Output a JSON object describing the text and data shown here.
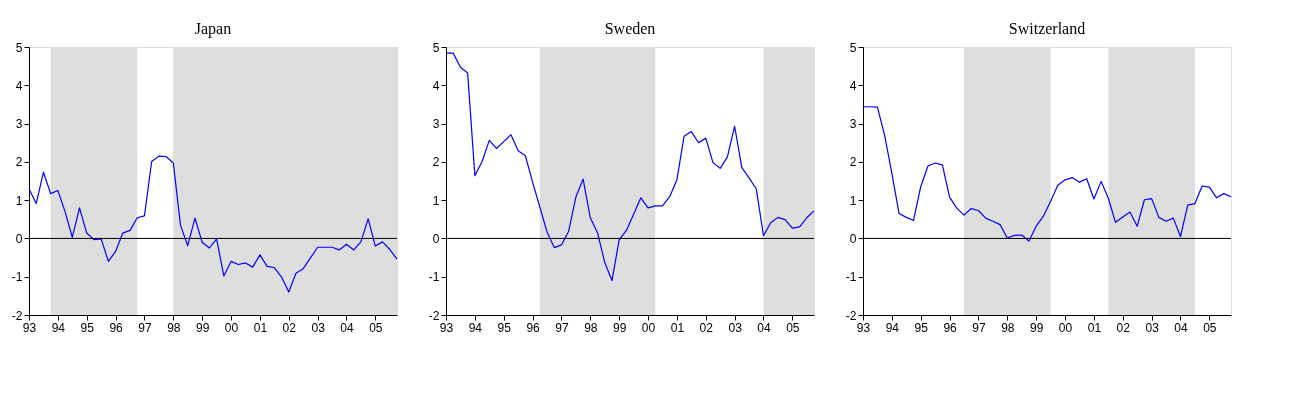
{
  "chart_data": [
    {
      "type": "line",
      "title": "Japan",
      "x": [
        1993,
        1993.25,
        1993.5,
        1993.75,
        1994,
        1994.25,
        1994.5,
        1994.75,
        1995,
        1995.25,
        1995.5,
        1995.75,
        1996,
        1996.25,
        1996.5,
        1996.75,
        1997,
        1997.25,
        1997.5,
        1997.75,
        1998,
        1998.25,
        1998.5,
        1998.75,
        1999,
        1999.25,
        1999.5,
        1999.75,
        2000,
        2000.25,
        2000.5,
        2000.75,
        2001,
        2001.25,
        2001.5,
        2001.75,
        2002,
        2002.25,
        2002.5,
        2002.75,
        2003,
        2003.25,
        2003.5,
        2003.75,
        2004,
        2004.25,
        2004.5,
        2004.75,
        2005,
        2005.25,
        2005.5,
        2005.75
      ],
      "series": [
        {
          "color": "#0000ff",
          "values": [
            1.3,
            0.91,
            1.73,
            1.17,
            1.25,
            0.7,
            0.03,
            0.8,
            0.14,
            -0.03,
            -0.01,
            -0.6,
            -0.34,
            0.14,
            0.21,
            0.54,
            0.59,
            2.01,
            2.15,
            2.14,
            1.97,
            0.34,
            -0.19,
            0.53,
            -0.1,
            -0.25,
            -0.01,
            -0.98,
            -0.6,
            -0.68,
            -0.64,
            -0.75,
            -0.43,
            -0.73,
            -0.76,
            -1.01,
            -1.4,
            -0.91,
            -0.79,
            -0.51,
            -0.23,
            -0.23,
            -0.23,
            -0.3,
            -0.15,
            -0.3,
            -0.09,
            0.51,
            -0.2,
            -0.09,
            -0.29,
            -0.54
          ]
        }
      ],
      "xlim": [
        1993,
        2005.75
      ],
      "xticks": [
        {
          "value": 1993,
          "label": "93"
        },
        {
          "value": 1994,
          "label": "94"
        },
        {
          "value": 1995,
          "label": "95"
        },
        {
          "value": 1996,
          "label": "96"
        },
        {
          "value": 1997,
          "label": "97"
        },
        {
          "value": 1998,
          "label": "98"
        },
        {
          "value": 1999,
          "label": "99"
        },
        {
          "value": 2000,
          "label": "00"
        },
        {
          "value": 2001,
          "label": "01"
        },
        {
          "value": 2002,
          "label": "02"
        },
        {
          "value": 2003,
          "label": "03"
        },
        {
          "value": 2004,
          "label": "04"
        },
        {
          "value": 2005,
          "label": "05"
        }
      ],
      "ylim": [
        -2,
        5
      ],
      "yticks": [
        -2,
        -1,
        0,
        1,
        2,
        3,
        4,
        5
      ],
      "grid": false,
      "line_style": "solid",
      "ref_lines": [
        {
          "axis": "y",
          "value": 0,
          "color": "#000000"
        }
      ],
      "bands": [
        {
          "axis": "x",
          "from": 1993.75,
          "to": 1996.75,
          "color": "#dedede"
        },
        {
          "axis": "x",
          "from": 1998,
          "to": 2005.75,
          "color": "#dedede"
        }
      ]
    },
    {
      "type": "line",
      "title": "Sweden",
      "x": [
        1993,
        1993.25,
        1993.5,
        1993.75,
        1994,
        1994.25,
        1994.5,
        1994.75,
        1995,
        1995.25,
        1995.5,
        1995.75,
        1996,
        1996.25,
        1996.5,
        1996.75,
        1997,
        1997.25,
        1997.5,
        1997.75,
        1998,
        1998.25,
        1998.5,
        1998.75,
        1999,
        1999.25,
        1999.5,
        1999.75,
        2000,
        2000.25,
        2000.5,
        2000.75,
        2001,
        2001.25,
        2001.5,
        2001.75,
        2002,
        2002.25,
        2002.5,
        2002.75,
        2003,
        2003.25,
        2003.5,
        2003.75,
        2004,
        2004.25,
        2004.5,
        2004.75,
        2005,
        2005.25,
        2005.5,
        2005.75
      ],
      "series": [
        {
          "color": "#0000ff",
          "values": [
            4.84,
            4.84,
            4.47,
            4.32,
            1.64,
            2.01,
            2.56,
            2.35,
            2.53,
            2.71,
            2.29,
            2.16,
            1.47,
            0.82,
            0.17,
            -0.24,
            -0.17,
            0.19,
            1.08,
            1.55,
            0.54,
            0.15,
            -0.63,
            -1.1,
            -0.04,
            0.21,
            0.63,
            1.06,
            0.8,
            0.85,
            0.85,
            1.09,
            1.53,
            2.67,
            2.79,
            2.5,
            2.62,
            1.98,
            1.83,
            2.13,
            2.93,
            1.85,
            1.58,
            1.29,
            0.07,
            0.41,
            0.55,
            0.49,
            0.27,
            0.3,
            0.54,
            0.72
          ]
        }
      ],
      "xlim": [
        1993,
        2005.75
      ],
      "xticks": [
        {
          "value": 1993,
          "label": "93"
        },
        {
          "value": 1994,
          "label": "94"
        },
        {
          "value": 1995,
          "label": "95"
        },
        {
          "value": 1996,
          "label": "96"
        },
        {
          "value": 1997,
          "label": "97"
        },
        {
          "value": 1998,
          "label": "98"
        },
        {
          "value": 1999,
          "label": "99"
        },
        {
          "value": 2000,
          "label": "00"
        },
        {
          "value": 2001,
          "label": "01"
        },
        {
          "value": 2002,
          "label": "02"
        },
        {
          "value": 2003,
          "label": "03"
        },
        {
          "value": 2004,
          "label": "04"
        },
        {
          "value": 2005,
          "label": "05"
        }
      ],
      "ylim": [
        -2,
        5
      ],
      "yticks": [
        -2,
        -1,
        0,
        1,
        2,
        3,
        4,
        5
      ],
      "grid": false,
      "line_style": "solid",
      "ref_lines": [
        {
          "axis": "y",
          "value": 0,
          "color": "#000000"
        }
      ],
      "bands": [
        {
          "axis": "x",
          "from": 1996.25,
          "to": 2000.25,
          "color": "#dedede"
        },
        {
          "axis": "x",
          "from": 2004,
          "to": 2005.75,
          "color": "#dedede"
        }
      ]
    },
    {
      "type": "line",
      "title": "Switzerland",
      "x": [
        1993,
        1993.25,
        1993.5,
        1993.75,
        1994,
        1994.25,
        1994.5,
        1994.75,
        1995,
        1995.25,
        1995.5,
        1995.75,
        1996,
        1996.25,
        1996.5,
        1996.75,
        1997,
        1997.25,
        1997.5,
        1997.75,
        1998,
        1998.25,
        1998.5,
        1998.75,
        1999,
        1999.25,
        1999.5,
        1999.75,
        2000,
        2000.25,
        2000.5,
        2000.75,
        2001,
        2001.25,
        2001.5,
        2001.75,
        2002,
        2002.25,
        2002.5,
        2002.75,
        2003,
        2003.25,
        2003.5,
        2003.75,
        2004,
        2004.25,
        2004.5,
        2004.75,
        2005,
        2005.25,
        2005.5,
        2005.75
      ],
      "series": [
        {
          "color": "#0000ff",
          "values": [
            3.44,
            3.44,
            3.43,
            2.69,
            1.7,
            0.65,
            0.55,
            0.47,
            1.35,
            1.89,
            1.97,
            1.92,
            1.08,
            0.79,
            0.61,
            0.78,
            0.73,
            0.53,
            0.45,
            0.36,
            0.01,
            0.08,
            0.09,
            -0.07,
            0.32,
            0.58,
            0.97,
            1.39,
            1.53,
            1.59,
            1.47,
            1.56,
            1.03,
            1.49,
            1.05,
            0.42,
            0.56,
            0.69,
            0.32,
            1.01,
            1.04,
            0.55,
            0.45,
            0.53,
            0.05,
            0.87,
            0.91,
            1.37,
            1.34,
            1.06,
            1.17,
            1.09
          ]
        }
      ],
      "xlim": [
        1993,
        2005.75
      ],
      "xticks": [
        {
          "value": 1993,
          "label": "93"
        },
        {
          "value": 1994,
          "label": "94"
        },
        {
          "value": 1995,
          "label": "95"
        },
        {
          "value": 1996,
          "label": "96"
        },
        {
          "value": 1997,
          "label": "97"
        },
        {
          "value": 1998,
          "label": "98"
        },
        {
          "value": 1999,
          "label": "99"
        },
        {
          "value": 2000,
          "label": "00"
        },
        {
          "value": 2001,
          "label": "01"
        },
        {
          "value": 2002,
          "label": "02"
        },
        {
          "value": 2003,
          "label": "03"
        },
        {
          "value": 2004,
          "label": "04"
        },
        {
          "value": 2005,
          "label": "05"
        }
      ],
      "ylim": [
        -2,
        5
      ],
      "yticks": [
        -2,
        -1,
        0,
        1,
        2,
        3,
        4,
        5
      ],
      "grid": false,
      "line_style": "solid",
      "ref_lines": [
        {
          "axis": "y",
          "value": 0,
          "color": "#000000"
        }
      ],
      "bands": [
        {
          "axis": "x",
          "from": 1996.5,
          "to": 1999.5,
          "color": "#dedede"
        },
        {
          "axis": "x",
          "from": 2001.5,
          "to": 2004.5,
          "color": "#dedede"
        }
      ]
    }
  ]
}
